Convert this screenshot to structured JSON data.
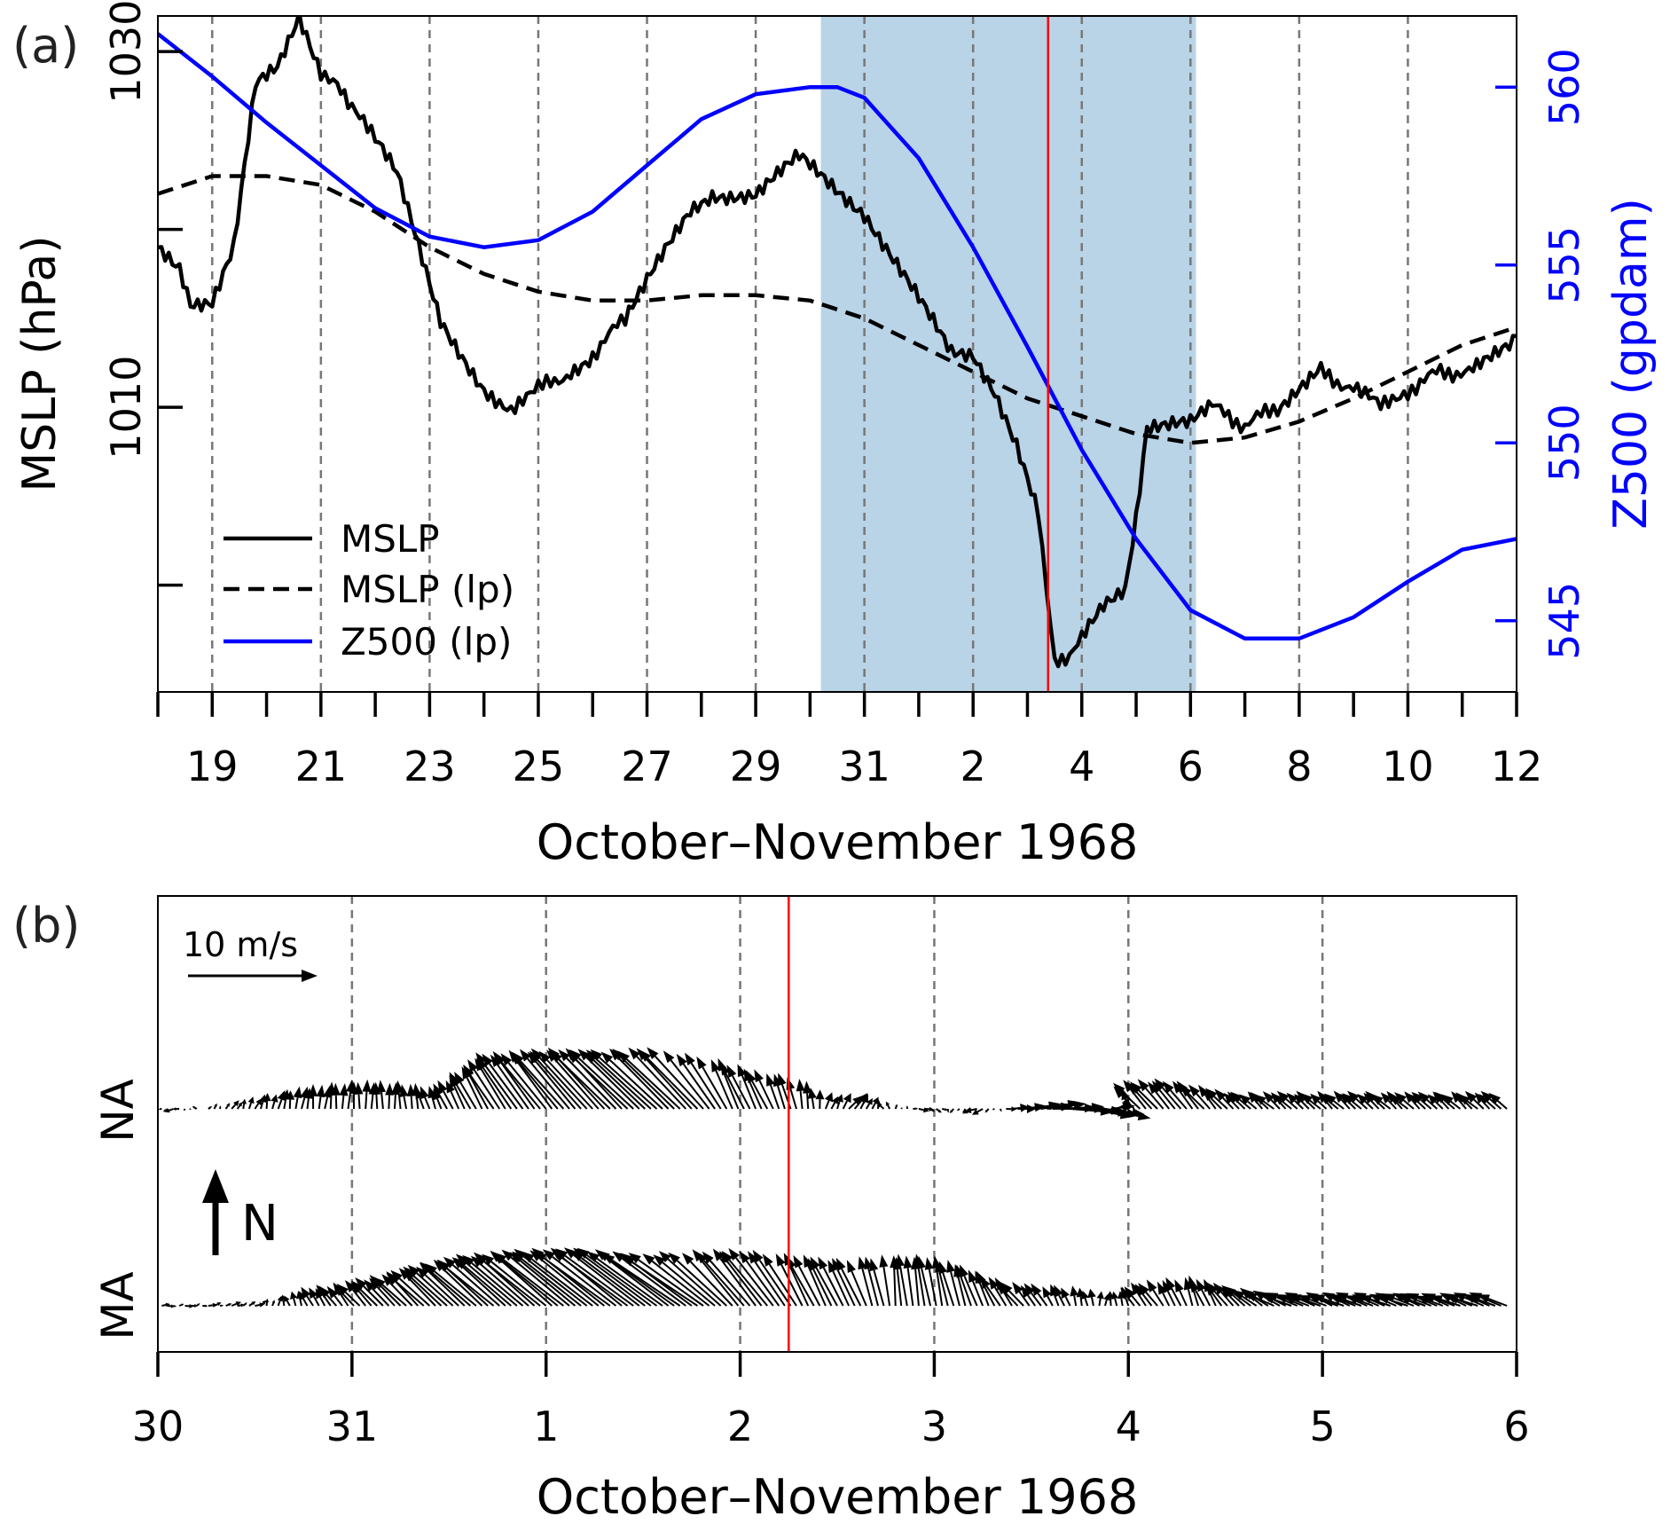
{
  "panel_a": {
    "label": "(a)",
    "xlabel": "October–November 1968",
    "ylabel_left": "MSLP (hPa)",
    "ylabel_right": "Z500 (gpdam)",
    "left_ticks": [
      1010,
      1030
    ],
    "right_ticks": [
      545,
      550,
      555,
      560
    ],
    "x_ticks": [
      "19",
      "21",
      "23",
      "25",
      "27",
      "29",
      "31",
      "2",
      "4",
      "6",
      "8",
      "10",
      "12"
    ],
    "legend": [
      "MSLP",
      "MSLP (lp)",
      "Z500 (lp)"
    ]
  },
  "panel_b": {
    "label": "(b)",
    "xlabel": "October–November 1968",
    "x_ticks": [
      "30",
      "31",
      "1",
      "2",
      "3",
      "4",
      "5",
      "6"
    ],
    "rows": [
      "NA",
      "MA"
    ],
    "scale_label": "10 m/s",
    "north_label": "N"
  },
  "chart_data": [
    {
      "type": "line",
      "x_unit": "days since 1968-10-18 00:00",
      "xlim": [
        0,
        25
      ],
      "ylim_left": [
        994,
        1032
      ],
      "ylim_right": [
        543,
        562
      ],
      "grid": "dashed vertical lines every 2 days",
      "highlight_span": [
        12.2,
        19.1
      ],
      "event_marker_x": 16.38,
      "series": [
        {
          "name": "MSLP",
          "axis": "left",
          "style": "solid-black",
          "x": [
            0,
            0.4,
            0.6,
            1.0,
            1.4,
            1.8,
            2.2,
            2.6,
            3.0,
            3.3,
            3.5,
            4.0,
            4.4,
            4.8,
            5.2,
            5.6,
            6.0,
            6.5,
            7.0,
            7.6,
            8.0,
            8.6,
            9.0,
            9.4,
            9.8,
            10.2,
            10.6,
            11.0,
            11.4,
            11.8,
            12.2,
            12.6,
            13.0,
            13.4,
            13.8,
            14.2,
            14.6,
            15.0,
            15.4,
            15.8,
            16.2,
            16.5,
            16.7,
            17.0,
            17.4,
            17.8,
            18.0,
            18.2,
            18.6,
            19.0,
            19.4,
            20.0,
            20.6,
            21.0,
            21.4,
            22.0,
            22.5,
            23.0,
            23.6,
            24.2,
            24.6,
            25.0
          ],
          "y": [
            1019,
            1018,
            1016,
            1016,
            1019,
            1028,
            1029,
            1032,
            1029,
            1028,
            1027,
            1025,
            1023,
            1019,
            1015,
            1013,
            1011,
            1010,
            1011,
            1012,
            1013,
            1015,
            1017,
            1019,
            1021,
            1022,
            1022,
            1022,
            1023,
            1024,
            1023,
            1022,
            1021,
            1019,
            1017,
            1015,
            1013,
            1013,
            1011,
            1008,
            1004,
            996,
            996,
            997,
            999,
            1000,
            1004,
            1009,
            1009,
            1009,
            1010,
            1009,
            1010,
            1011,
            1012,
            1011,
            1010,
            1011,
            1012,
            1012,
            1013,
            1014
          ]
        },
        {
          "name": "MSLP (lp)",
          "axis": "left",
          "style": "dashed-black",
          "x": [
            0,
            1,
            2,
            3,
            4,
            5,
            6,
            7,
            8,
            9,
            10,
            11,
            12,
            13,
            14,
            15,
            16,
            17,
            18,
            19,
            20,
            21,
            22,
            23,
            24,
            25
          ],
          "y": [
            1022,
            1023,
            1023,
            1022.5,
            1021,
            1019,
            1017.5,
            1016.5,
            1016,
            1016,
            1016.3,
            1016.3,
            1016,
            1015,
            1013.5,
            1012,
            1010.5,
            1009.5,
            1008.5,
            1008,
            1008.3,
            1009.2,
            1010.5,
            1012,
            1013.5,
            1014.5
          ]
        },
        {
          "name": "Z500 (lp)",
          "axis": "right",
          "style": "solid-blue",
          "x": [
            0,
            1,
            2,
            3,
            4,
            5,
            6,
            7,
            8,
            9,
            10,
            11,
            12,
            12.5,
            13,
            14,
            15,
            16,
            17,
            18,
            19,
            20,
            21,
            22,
            23,
            24,
            25
          ],
          "y": [
            561.5,
            560.3,
            559,
            557.8,
            556.6,
            555.8,
            555.5,
            555.7,
            556.5,
            557.8,
            559.1,
            559.8,
            560,
            560,
            559.7,
            558,
            555.5,
            552.7,
            549.8,
            547.3,
            545.3,
            544.5,
            544.5,
            545.1,
            546.1,
            547.0,
            547.3
          ]
        }
      ],
      "legend_position": "lower-left"
    },
    {
      "type": "vector",
      "x_unit": "days since 1968-10-30 00:00",
      "xlim": [
        0,
        7
      ],
      "rows": [
        "NA",
        "MA"
      ],
      "scale_vector_ms": 10,
      "event_marker_x": 3.25,
      "series": [
        {
          "name": "NA",
          "t": [
            0.1,
            0.35,
            0.7,
            1.0,
            1.25,
            1.45,
            1.65,
            1.85,
            2.05,
            2.3,
            2.55,
            2.8,
            2.95,
            3.15,
            3.3,
            3.45,
            3.6,
            3.75,
            3.95,
            4.25,
            4.55,
            4.85,
            5.05,
            5.3,
            5.6
          ],
          "u": [
            -0.5,
            0.4,
            0.3,
            0.1,
            -0.1,
            -0.8,
            -1.8,
            -3.3,
            -4.0,
            -4.8,
            -5.5,
            -4.8,
            -2.0,
            -1.6,
            -0.6,
            0.4,
            1.1,
            -0.4,
            0.8,
            -1.0,
            3.5,
            4.2,
            -2.2,
            -2.0,
            -1.5
          ],
          "v": [
            -0.2,
            0.5,
            1.8,
            2.4,
            2.3,
            1.8,
            3.4,
            4.7,
            4.9,
            5.1,
            5.0,
            5.2,
            4.4,
            3.3,
            2.8,
            1.2,
            1.3,
            0.6,
            -0.2,
            -0.4,
            0.5,
            -0.8,
            2.3,
            2.5,
            1.4
          ]
        },
        {
          "name": "MA",
          "t": [
            0.1,
            0.5,
            0.8,
            1.05,
            1.25,
            1.45,
            1.65,
            1.85,
            2.05,
            2.3,
            2.55,
            2.8,
            3.0,
            3.2,
            3.35,
            3.6,
            3.8,
            4.0,
            4.2,
            4.45,
            4.7,
            4.9,
            5.1,
            5.35,
            5.6,
            5.85
          ],
          "u": [
            0.5,
            0.6,
            -0.8,
            -1.8,
            -2.5,
            -3.4,
            -4.3,
            -5.0,
            -5.6,
            -6.2,
            -6.6,
            -6.3,
            -4.0,
            -3.6,
            -2.2,
            -2.0,
            -0.4,
            -0.8,
            -1.2,
            -1.8,
            -0.6,
            0.2,
            -1.6,
            -0.8,
            -2.0,
            -2.5
          ],
          "v": [
            0,
            0.3,
            1.5,
            2.0,
            2.5,
            3.2,
            3.8,
            4.3,
            4.6,
            4.8,
            4.9,
            4.4,
            4.7,
            4.8,
            4.4,
            4.0,
            4.3,
            4.3,
            3.5,
            2.0,
            1.7,
            1.1,
            1.9,
            2.5,
            1.7,
            1.0
          ]
        }
      ]
    }
  ]
}
